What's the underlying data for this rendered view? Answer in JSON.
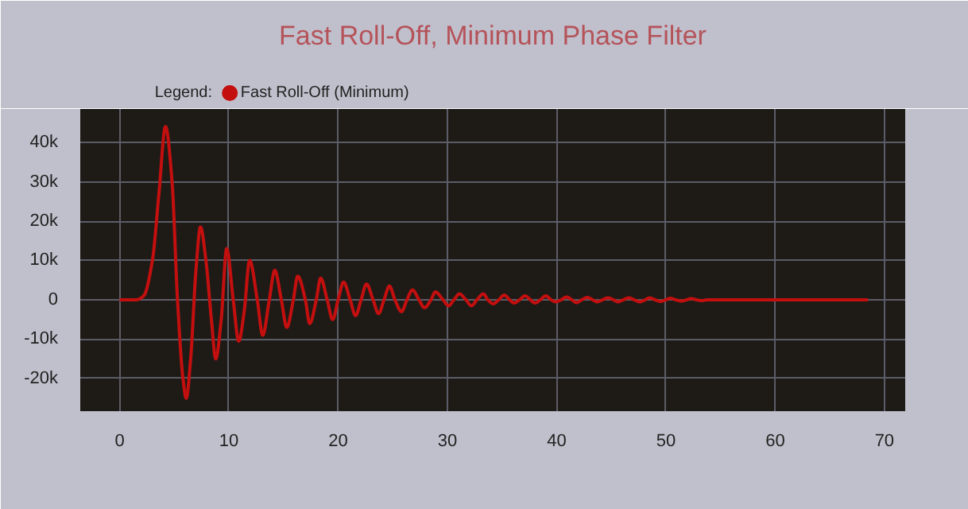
{
  "chart_data": {
    "type": "line",
    "title": "Fast Roll-Off, Minimum Phase Filter",
    "legend_title": "Legend:",
    "legend": "top left",
    "grid": true,
    "marker": "none",
    "line_style": "solid",
    "xlim": [
      -3.6,
      71.9
    ],
    "ylim": [
      -28300,
      48500
    ],
    "xticks": [
      0,
      10,
      20,
      30,
      40,
      50,
      60,
      70
    ],
    "yticks": [
      {
        "value": -20000,
        "label": "-20k"
      },
      {
        "value": -10000,
        "label": "-10k"
      },
      0,
      {
        "value": 10000,
        "label": "10k"
      },
      {
        "value": 20000,
        "label": "20k"
      },
      {
        "value": 30000,
        "label": "30k"
      },
      {
        "value": 40000,
        "label": "40k"
      }
    ],
    "series": [
      {
        "name": "Fast Roll-Off (Minimum)",
        "color": "#c40f0f",
        "x": [
          0,
          1.5,
          2.2,
          3,
          3.6,
          4.2,
          4.8,
          5.3,
          5.8,
          6.1,
          6.5,
          7.0,
          7.4,
          7.9,
          8.4,
          8.8,
          9.3,
          9.8,
          10.4,
          10.9,
          11.4,
          11.9,
          12.6,
          13.1,
          13.7,
          14.2,
          14.8,
          15.3,
          15.9,
          16.3,
          17,
          17.4,
          18,
          18.4,
          19,
          19.5,
          20,
          20.5,
          21.1,
          21.6,
          22.1,
          22.6,
          23.2,
          23.7,
          24.2,
          24.7,
          25.2,
          25.8,
          26.3,
          26.8,
          27.4,
          27.9,
          28.5,
          28.9,
          29.6,
          30.1,
          30.6,
          31.1,
          31.7,
          32.2,
          32.7,
          33.3,
          33.7,
          34.2,
          34.7,
          35.2,
          35.7,
          36.1,
          36.6,
          37.1,
          37.6,
          38.0,
          38.5,
          39.0,
          39.5,
          39.9,
          40.4,
          40.9,
          41.4,
          41.8,
          42.3,
          42.8,
          43.3,
          43.7,
          44.2,
          44.7,
          45.2,
          45.6,
          46.1,
          46.6,
          47.1,
          47.6,
          48.1,
          48.5,
          49.0,
          49.5,
          50.0,
          50.4,
          50.9,
          51.4,
          51.9,
          52.3,
          52.8,
          53.3,
          53.8,
          54.5,
          68.5
        ],
        "values": [
          0,
          0,
          1000,
          10000,
          27000,
          44000,
          30000,
          0,
          -20000,
          -25000,
          -15000,
          8000,
          18500,
          10000,
          -5000,
          -15000,
          -5000,
          13000,
          0,
          -10500,
          -3000,
          10000,
          0,
          -9000,
          0,
          7500,
          0,
          -7000,
          0,
          6000,
          0,
          -6000,
          0,
          5500,
          0,
          -5000,
          0,
          4500,
          0,
          -4000,
          0,
          4000,
          0,
          -3500,
          0,
          3500,
          0,
          -3000,
          0,
          2500,
          0,
          -2000,
          0,
          2000,
          0,
          -1500,
          0,
          1500,
          0,
          -1500,
          0,
          1500,
          0,
          -1000,
          0,
          1200,
          0,
          -800,
          0,
          1000,
          0,
          -800,
          0,
          1000,
          0,
          -500,
          0,
          700,
          0,
          -700,
          0,
          600,
          0,
          -500,
          0,
          500,
          0,
          -500,
          0,
          500,
          0,
          -500,
          0,
          500,
          0,
          -400,
          0,
          400,
          0,
          -300,
          0,
          300,
          0,
          -200,
          0,
          0,
          0
        ]
      }
    ]
  }
}
